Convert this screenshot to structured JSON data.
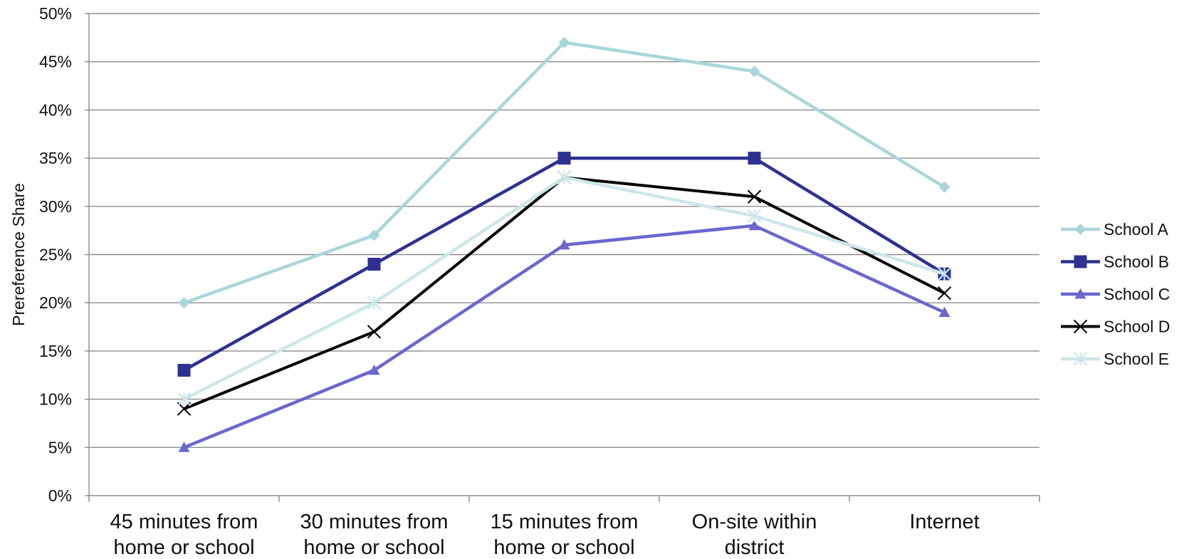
{
  "chart_data": {
    "type": "line",
    "title": "",
    "xlabel": "",
    "ylabel": "Prereference Share",
    "ylim": [
      0,
      50
    ],
    "y_tick_step": 5,
    "y_tick_suffix": "%",
    "grid": "horizontal",
    "legend_position": "right",
    "categories": [
      [
        "45 minutes from",
        "home or school"
      ],
      [
        "30 minutes from",
        "home or school"
      ],
      [
        "15 minutes from",
        "home or school"
      ],
      [
        "On-site within",
        "district"
      ],
      [
        "Internet"
      ]
    ],
    "series": [
      {
        "name": "School A",
        "values": [
          20,
          27,
          47,
          44,
          32
        ],
        "color": "#a9d6db",
        "marker": "diamond"
      },
      {
        "name": "School B",
        "values": [
          13,
          24,
          35,
          35,
          23
        ],
        "color": "#2e3192",
        "marker": "square"
      },
      {
        "name": "School C",
        "values": [
          5,
          13,
          26,
          28,
          19
        ],
        "color": "#6a67ce",
        "marker": "triangle"
      },
      {
        "name": "School D",
        "values": [
          9,
          17,
          33,
          31,
          21
        ],
        "color": "#000000",
        "marker": "x"
      },
      {
        "name": "School E",
        "values": [
          10,
          20,
          33,
          29,
          23
        ],
        "color": "#cde6ea",
        "marker": "star"
      }
    ]
  }
}
